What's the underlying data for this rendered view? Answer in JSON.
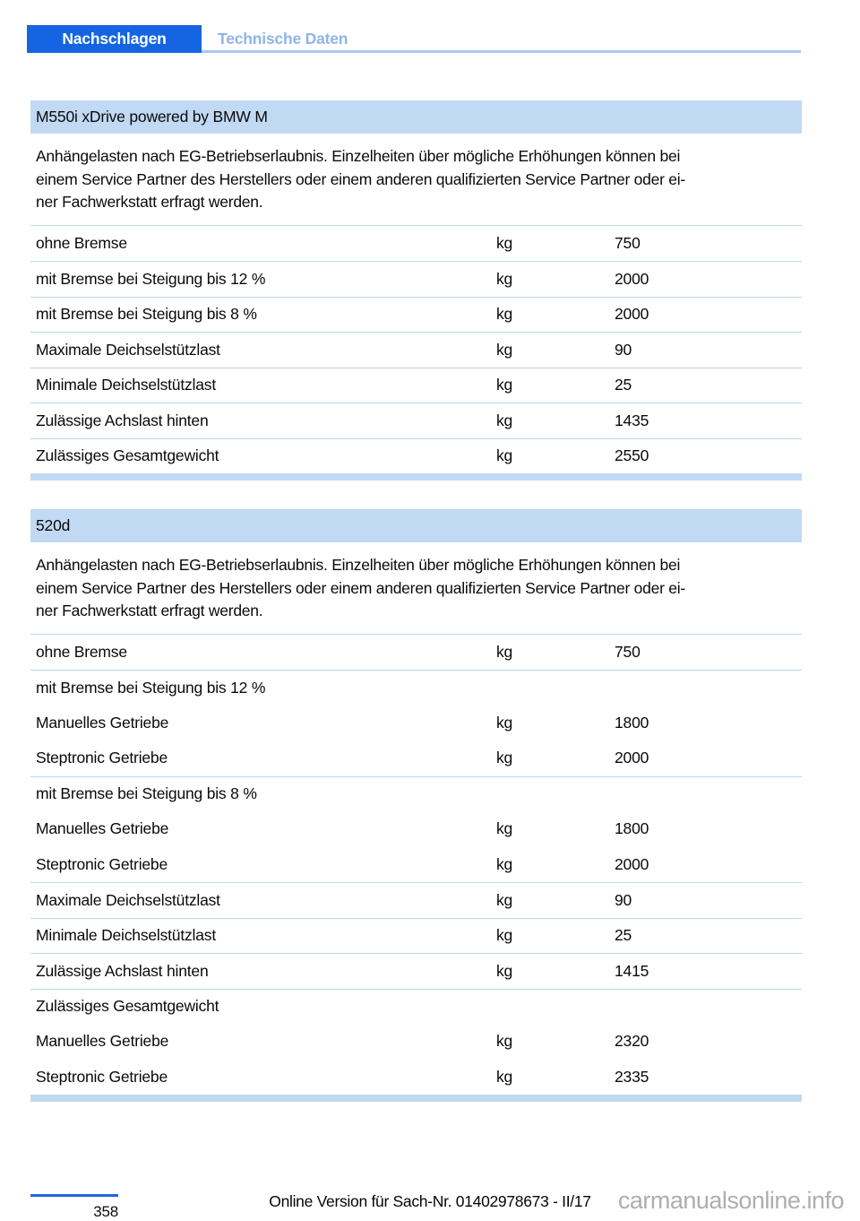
{
  "header": {
    "active_tab": "Nachschlagen",
    "section_crumb": "Technische Daten"
  },
  "sections": [
    {
      "title": "M550i xDrive powered by BMW M",
      "paragraph_lines": [
        "Anhängelasten nach EG-Betriebserlaubnis. Einzelheiten über mögliche Erhöhungen können bei",
        "einem Service Partner des Herstellers oder einem anderen qualifizierten Service Partner oder ei-",
        "ner Fachwerkstatt erfragt werden."
      ],
      "rows": [
        {
          "label": "ohne Bremse",
          "unit": "kg",
          "value": "750"
        },
        {
          "label": "mit Bremse bei Steigung bis 12 %",
          "unit": "kg",
          "value": "2000"
        },
        {
          "label": "mit Bremse bei Steigung bis 8 %",
          "unit": "kg",
          "value": "2000"
        },
        {
          "label": "Maximale Deichselstützlast",
          "unit": "kg",
          "value": "90"
        },
        {
          "label": "Minimale Deichselstützlast",
          "unit": "kg",
          "value": "25"
        },
        {
          "label": "Zulässige Achslast hinten",
          "unit": "kg",
          "value": "1435"
        },
        {
          "label": "Zulässiges Gesamtgewicht",
          "unit": "kg",
          "value": "2550"
        }
      ]
    },
    {
      "title": "520d",
      "paragraph_lines": [
        "Anhängelasten nach EG-Betriebserlaubnis. Einzelheiten über mögliche Erhöhungen können bei",
        "einem Service Partner des Herstellers oder einem anderen qualifizierten Service Partner oder ei-",
        "ner Fachwerkstatt erfragt werden."
      ],
      "rows": [
        {
          "label": "ohne Bremse",
          "unit": "kg",
          "value": "750"
        },
        {
          "label": "mit Bremse bei Steigung bis 12 %",
          "unit": "",
          "value": ""
        },
        {
          "label": "Manuelles Getriebe",
          "unit": "kg",
          "value": "1800"
        },
        {
          "label": "Steptronic Getriebe",
          "unit": "kg",
          "value": "2000"
        },
        {
          "label": "mit Bremse bei Steigung bis 8 %",
          "unit": "",
          "value": ""
        },
        {
          "label": "Manuelles Getriebe",
          "unit": "kg",
          "value": "1800"
        },
        {
          "label": "Steptronic Getriebe",
          "unit": "kg",
          "value": "2000"
        },
        {
          "label": "Maximale Deichselstützlast",
          "unit": "kg",
          "value": "90"
        },
        {
          "label": "Minimale Deichselstützlast",
          "unit": "kg",
          "value": "25"
        },
        {
          "label": "Zulässige Achslast hinten",
          "unit": "kg",
          "value": "1415"
        },
        {
          "label": "Zulässiges Gesamtgewicht",
          "unit": "",
          "value": ""
        },
        {
          "label": "Manuelles Getriebe",
          "unit": "kg",
          "value": "2320"
        },
        {
          "label": "Steptronic Getriebe",
          "unit": "kg",
          "value": "2335"
        }
      ]
    }
  ],
  "footer": {
    "page_number": "358",
    "version_text": "Online Version für Sach-Nr. 01402978673 - II/17",
    "watermark": "carmanualsonline.info"
  },
  "colors": {
    "tab_blue": "#1565E2",
    "light_blue_text": "#8FB4E8",
    "band_background": "#C1D9F3",
    "row_separator": "#BAD6F2",
    "header_underline": "#A9C9EE",
    "footer_line_blue": "#2264E6",
    "watermark_gray": "#A6A6A6"
  }
}
